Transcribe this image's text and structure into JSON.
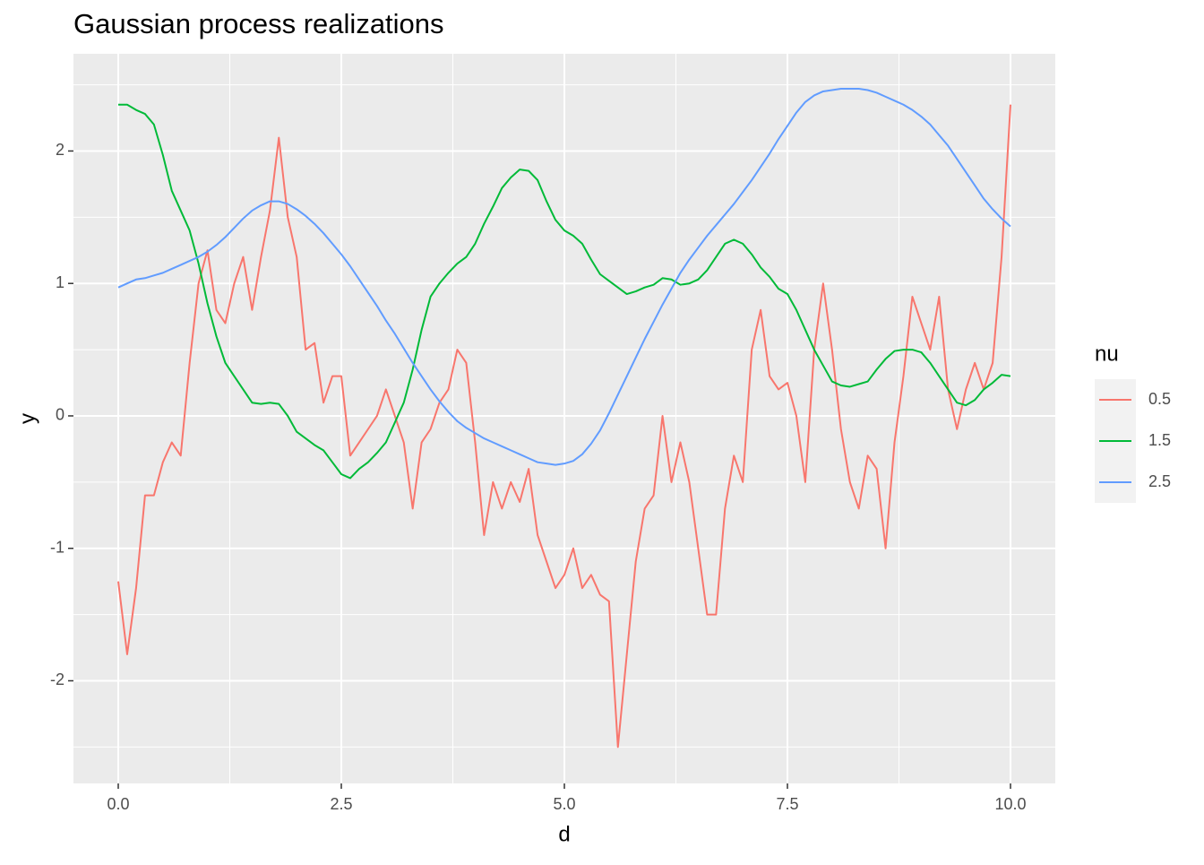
{
  "chart_data": {
    "type": "line",
    "title": "Gaussian process realizations",
    "x_label": "d",
    "y_label": "y",
    "legend_title": "nu",
    "legend_position": "right",
    "grid": true,
    "xlim": [
      -0.502,
      10.502
    ],
    "ylim": [
      -2.775,
      2.734
    ],
    "xticks": [
      {
        "value": 0,
        "label": "0.0"
      },
      2.5,
      {
        "value": 5,
        "label": "5.0"
      },
      7.5,
      {
        "value": 10,
        "label": "10.0"
      }
    ],
    "yticks": [
      -2,
      -1,
      0,
      1,
      2
    ],
    "x": [
      0,
      0.1,
      0.2,
      0.3,
      0.4,
      0.5,
      0.6,
      0.7,
      0.8,
      0.9,
      1,
      1.1,
      1.2,
      1.3,
      1.4,
      1.5,
      1.6,
      1.7,
      1.8,
      1.9,
      2,
      2.1,
      2.2,
      2.3,
      2.4,
      2.5,
      2.6,
      2.7,
      2.8,
      2.9,
      3,
      3.1,
      3.2,
      3.3,
      3.4,
      3.5,
      3.6,
      3.7,
      3.8,
      3.9,
      4,
      4.1,
      4.2,
      4.3,
      4.4,
      4.5,
      4.6,
      4.7,
      4.8,
      4.9,
      5,
      5.1,
      5.2,
      5.3,
      5.4,
      5.5,
      5.6,
      5.7,
      5.8,
      5.9,
      6,
      6.1,
      6.2,
      6.3,
      6.4,
      6.5,
      6.6,
      6.7,
      6.8,
      6.9,
      7,
      7.1,
      7.2,
      7.3,
      7.4,
      7.5,
      7.6,
      7.7,
      7.8,
      7.9,
      8,
      8.1,
      8.2,
      8.3,
      8.4,
      8.5,
      8.6,
      8.7,
      8.8,
      8.9,
      9,
      9.1,
      9.2,
      9.3,
      9.4,
      9.5,
      9.6,
      9.7,
      9.8,
      9.9,
      10
    ],
    "series": [
      {
        "name": "0.5",
        "color": "#f8766d",
        "values": [
          -1.25,
          -1.8,
          -1.3,
          -0.6,
          -0.6,
          -0.35,
          -0.2,
          -0.3,
          0.4,
          1.0,
          1.25,
          0.8,
          0.7,
          1.0,
          1.2,
          0.8,
          1.2,
          1.55,
          2.1,
          1.5,
          1.2,
          0.5,
          0.55,
          0.1,
          0.3,
          0.3,
          -0.3,
          -0.2,
          -0.1,
          0.0,
          0.2,
          0.0,
          -0.2,
          -0.7,
          -0.2,
          -0.1,
          0.1,
          0.2,
          0.5,
          0.4,
          -0.2,
          -0.9,
          -0.5,
          -0.7,
          -0.5,
          -0.65,
          -0.4,
          -0.9,
          -1.1,
          -1.3,
          -1.2,
          -1.0,
          -1.3,
          -1.2,
          -1.35,
          -1.4,
          -2.5,
          -1.8,
          -1.1,
          -0.7,
          -0.6,
          0.0,
          -0.5,
          -0.2,
          -0.5,
          -1.0,
          -1.5,
          -1.5,
          -0.7,
          -0.3,
          -0.5,
          0.5,
          0.8,
          0.3,
          0.2,
          0.25,
          0.0,
          -0.5,
          0.5,
          1.0,
          0.5,
          -0.1,
          -0.5,
          -0.7,
          -0.3,
          -0.4,
          -1.0,
          -0.2,
          0.3,
          0.9,
          0.7,
          0.5,
          0.9,
          0.2,
          -0.1,
          0.2,
          0.4,
          0.2,
          0.4,
          1.2,
          2.35
        ]
      },
      {
        "name": "1.5",
        "color": "#00ba38",
        "values": [
          2.35,
          2.35,
          2.31,
          2.28,
          2.2,
          1.97,
          1.7,
          1.55,
          1.4,
          1.15,
          0.85,
          0.6,
          0.4,
          0.3,
          0.2,
          0.1,
          0.09,
          0.1,
          0.09,
          0.0,
          -0.12,
          -0.17,
          -0.22,
          -0.26,
          -0.35,
          -0.44,
          -0.47,
          -0.4,
          -0.35,
          -0.28,
          -0.2,
          -0.05,
          0.1,
          0.35,
          0.65,
          0.9,
          1.0,
          1.08,
          1.15,
          1.2,
          1.3,
          1.45,
          1.58,
          1.72,
          1.8,
          1.86,
          1.85,
          1.78,
          1.62,
          1.48,
          1.4,
          1.36,
          1.3,
          1.18,
          1.07,
          1.02,
          0.97,
          0.92,
          0.94,
          0.97,
          0.99,
          1.04,
          1.03,
          0.99,
          1.0,
          1.03,
          1.1,
          1.2,
          1.3,
          1.33,
          1.3,
          1.22,
          1.12,
          1.05,
          0.96,
          0.92,
          0.8,
          0.65,
          0.5,
          0.38,
          0.26,
          0.23,
          0.22,
          0.24,
          0.26,
          0.35,
          0.43,
          0.49,
          0.5,
          0.5,
          0.48,
          0.4,
          0.3,
          0.2,
          0.1,
          0.08,
          0.12,
          0.2,
          0.25,
          0.31,
          0.3
        ]
      },
      {
        "name": "2.5",
        "color": "#619cff",
        "values": [
          0.97,
          1.0,
          1.03,
          1.04,
          1.06,
          1.08,
          1.11,
          1.14,
          1.17,
          1.2,
          1.24,
          1.29,
          1.35,
          1.42,
          1.49,
          1.55,
          1.59,
          1.62,
          1.62,
          1.6,
          1.56,
          1.51,
          1.45,
          1.38,
          1.3,
          1.22,
          1.13,
          1.03,
          0.93,
          0.83,
          0.72,
          0.62,
          0.51,
          0.4,
          0.3,
          0.2,
          0.11,
          0.03,
          -0.04,
          -0.09,
          -0.13,
          -0.17,
          -0.2,
          -0.23,
          -0.26,
          -0.29,
          -0.32,
          -0.35,
          -0.36,
          -0.37,
          -0.36,
          -0.34,
          -0.29,
          -0.21,
          -0.11,
          0.02,
          0.16,
          0.3,
          0.44,
          0.58,
          0.71,
          0.84,
          0.96,
          1.08,
          1.18,
          1.27,
          1.36,
          1.44,
          1.52,
          1.6,
          1.69,
          1.78,
          1.88,
          1.98,
          2.09,
          2.19,
          2.29,
          2.37,
          2.42,
          2.45,
          2.46,
          2.47,
          2.47,
          2.47,
          2.46,
          2.44,
          2.41,
          2.38,
          2.35,
          2.31,
          2.26,
          2.2,
          2.12,
          2.04,
          1.94,
          1.84,
          1.74,
          1.64,
          1.56,
          1.49,
          1.43
        ]
      }
    ]
  }
}
